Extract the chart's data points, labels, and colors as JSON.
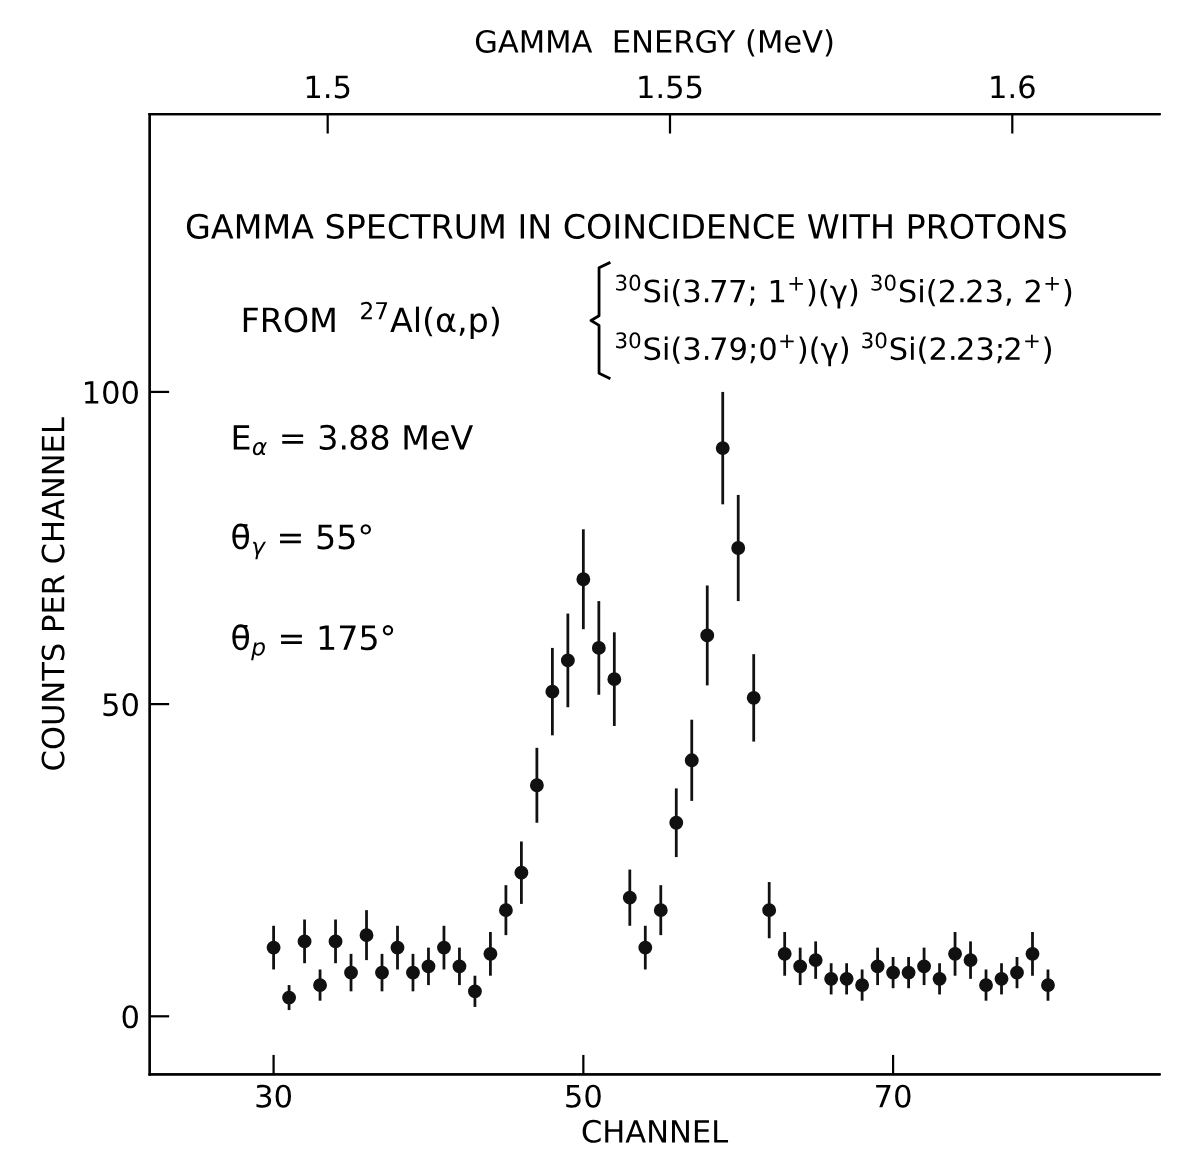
{
  "chart_data": {
    "type": "scatter",
    "xlabel": "CHANNEL",
    "ylabel": "COUNTS PER CHANNEL",
    "x2label": "GAMMA  ENERGY (MeV)",
    "x": [
      30,
      31,
      32,
      33,
      34,
      35,
      36,
      37,
      38,
      39,
      40,
      41,
      42,
      43,
      44,
      45,
      46,
      47,
      48,
      49,
      50,
      51,
      52,
      53,
      54,
      55,
      56,
      57,
      58,
      59,
      60,
      61,
      62,
      63,
      64,
      65,
      66,
      67,
      68,
      69,
      70,
      71,
      72,
      73,
      74,
      75,
      76,
      77,
      78,
      79,
      80
    ],
    "series": [
      {
        "color": "#111111",
        "values": [
          11,
          3,
          12,
          5,
          12,
          7,
          13,
          7,
          11,
          7,
          8,
          11,
          8,
          4,
          10,
          17,
          23,
          37,
          52,
          57,
          70,
          59,
          54,
          19,
          11,
          17,
          31,
          41,
          61,
          91,
          75,
          51,
          17,
          10,
          8,
          9,
          6,
          6,
          5,
          8,
          7,
          7,
          8,
          6,
          10,
          9,
          5,
          6,
          7,
          10,
          5
        ],
        "errors": [
          3.5,
          2,
          3.5,
          2.5,
          3.5,
          3,
          4,
          3,
          3.5,
          3,
          3,
          3.5,
          3,
          2.5,
          3.5,
          4,
          5,
          6,
          7,
          7.5,
          8,
          7.5,
          7.5,
          4.5,
          3.5,
          4,
          5.5,
          6.5,
          8,
          9,
          8.5,
          7,
          4.5,
          3.5,
          3,
          3,
          2.5,
          2.5,
          2.5,
          3,
          2.5,
          2.5,
          3,
          2.5,
          3.5,
          3,
          2.5,
          2.5,
          2.5,
          3.5,
          2.5
        ]
      }
    ],
    "xlim": [
      22,
      87.2
    ],
    "xticks": [
      30,
      50,
      70
    ],
    "ylim": [
      -9.3,
      144.5
    ],
    "yticks": [
      0,
      50,
      100
    ],
    "x2lim": [
      1.474,
      1.6215
    ],
    "x2ticks": [
      1.5,
      1.55,
      1.6
    ],
    "marker": "circle",
    "grid": false,
    "legend": false,
    "annotations": [
      "GAMMA SPECTRUM IN COINCIDENCE WITH PROTONS",
      "FROM  $^{27}$Al(α,p)",
      "$^{30}$Si(3.77; 1$^{+}$)(γ) $^{30}$Si(2.23, 2$^{+}$)",
      "$^{30}$Si(3.79;0$^{+}$)(γ) $^{30}$Si(2.23;2$^{+}$)",
      "E$_{α}$ = 3.88 MeV",
      "θ̄$_{γ}$ = 55°",
      "θ̄$_{p}$ = 175°"
    ]
  }
}
